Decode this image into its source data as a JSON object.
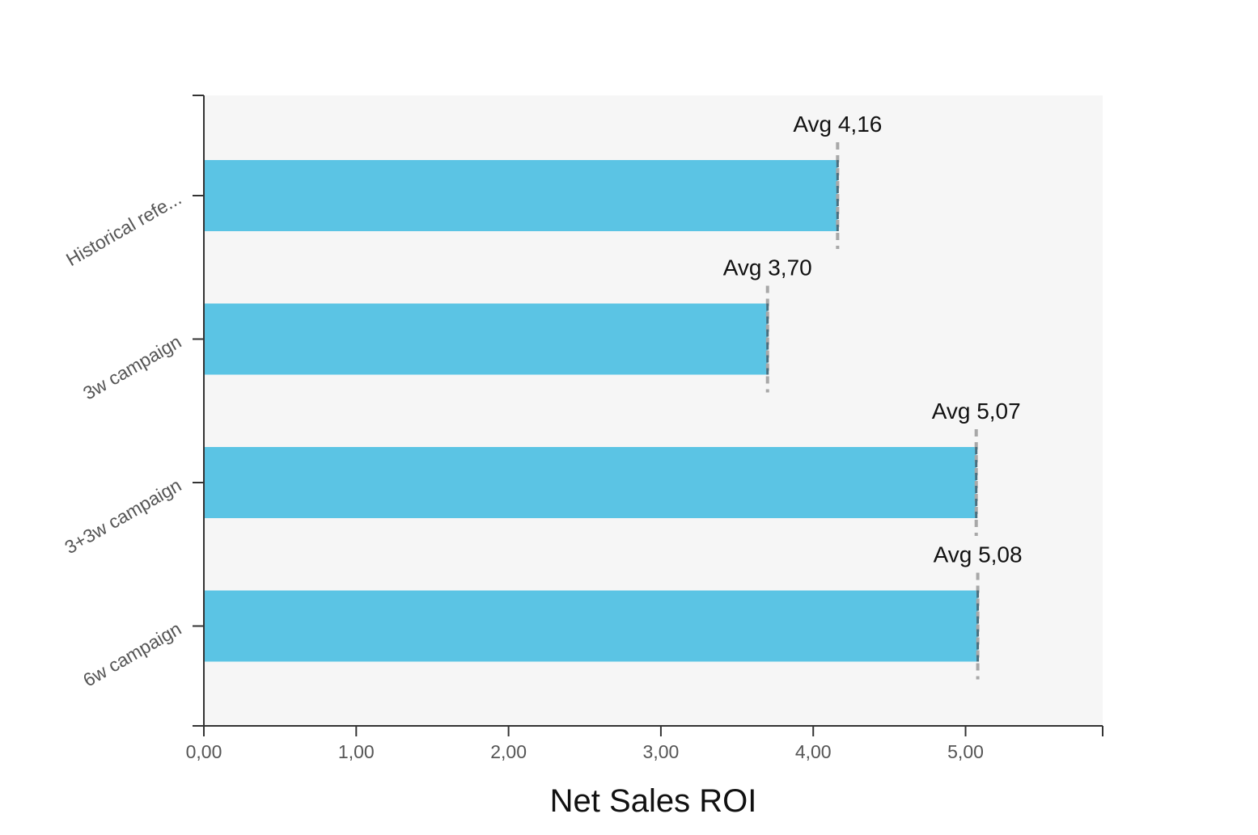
{
  "chart_data": {
    "type": "bar",
    "orientation": "horizontal",
    "categories": [
      "Historical refe...",
      "3w campaign",
      "3+3w campaign",
      "6w campaign"
    ],
    "values": [
      4.16,
      3.7,
      5.07,
      5.08
    ],
    "avg_labels": [
      "Avg 4,16",
      "Avg 3,70",
      "Avg 5,07",
      "Avg 5,08"
    ],
    "xlabel": "Net Sales ROI",
    "ylabel": "",
    "title": "",
    "xlim": [
      0,
      5.9
    ],
    "x_ticks": [
      0,
      1,
      2,
      3,
      4,
      5
    ],
    "x_tick_labels": [
      "0,00",
      "1,00",
      "2,00",
      "3,00",
      "4,00",
      "5,00"
    ],
    "grid": false,
    "colors": {
      "bar": "#5bc4e4",
      "plot_background": "#f6f6f6",
      "avg_marker": "#a8a8a8",
      "axis": "#333333"
    }
  }
}
